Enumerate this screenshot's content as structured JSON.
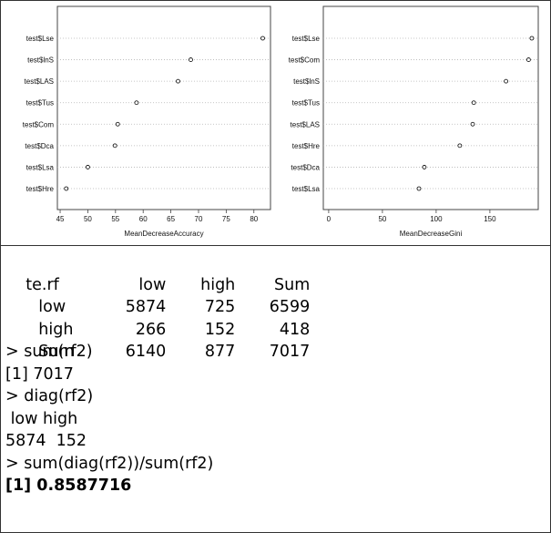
{
  "chart_data": [
    {
      "type": "scatter",
      "title": "",
      "xlabel": "MeanDecreaseAccuracy",
      "ylabel": "",
      "xlim": [
        44.5,
        83
      ],
      "xticks": [
        45,
        50,
        55,
        60,
        65,
        70,
        75,
        80
      ],
      "grid": "dotted horizontal",
      "categories": [
        "test$Lse",
        "test$lnS",
        "test$LAS",
        "test$Tus",
        "test$Com",
        "test$Dca",
        "test$Lsa",
        "test$Hre"
      ],
      "values": [
        81.6,
        68.6,
        66.3,
        58.8,
        55.4,
        54.9,
        50.0,
        46.1
      ]
    },
    {
      "type": "scatter",
      "title": "",
      "xlabel": "MeanDecreaseGini",
      "ylabel": "",
      "xlim": [
        -5,
        195
      ],
      "xticks": [
        0,
        50,
        100,
        150
      ],
      "grid": "dotted horizontal",
      "categories": [
        "test$Lse",
        "test$Com",
        "test$lnS",
        "test$Tus",
        "test$LAS",
        "test$Hre",
        "test$Dca",
        "test$Lsa"
      ],
      "values": [
        189,
        186,
        165,
        135,
        134,
        122,
        89,
        84
      ]
    }
  ],
  "console": {
    "table_header": [
      "te.rf",
      "low",
      "high",
      "Sum"
    ],
    "table_rows": [
      [
        "low",
        "5874",
        "725",
        "6599"
      ],
      [
        "high",
        "266",
        "152",
        "418"
      ],
      [
        "Sum",
        "6140",
        "877",
        "7017"
      ]
    ],
    "cmd1": "> sum(rf2)",
    "out1": "[1] 7017",
    "cmd2": "> diag(rf2)",
    "diag_header": " low high",
    "diag_values": "5874  152",
    "cmd3": "> sum(diag(rf2))/sum(rf2)",
    "out3": "[1] 0.8587716"
  }
}
